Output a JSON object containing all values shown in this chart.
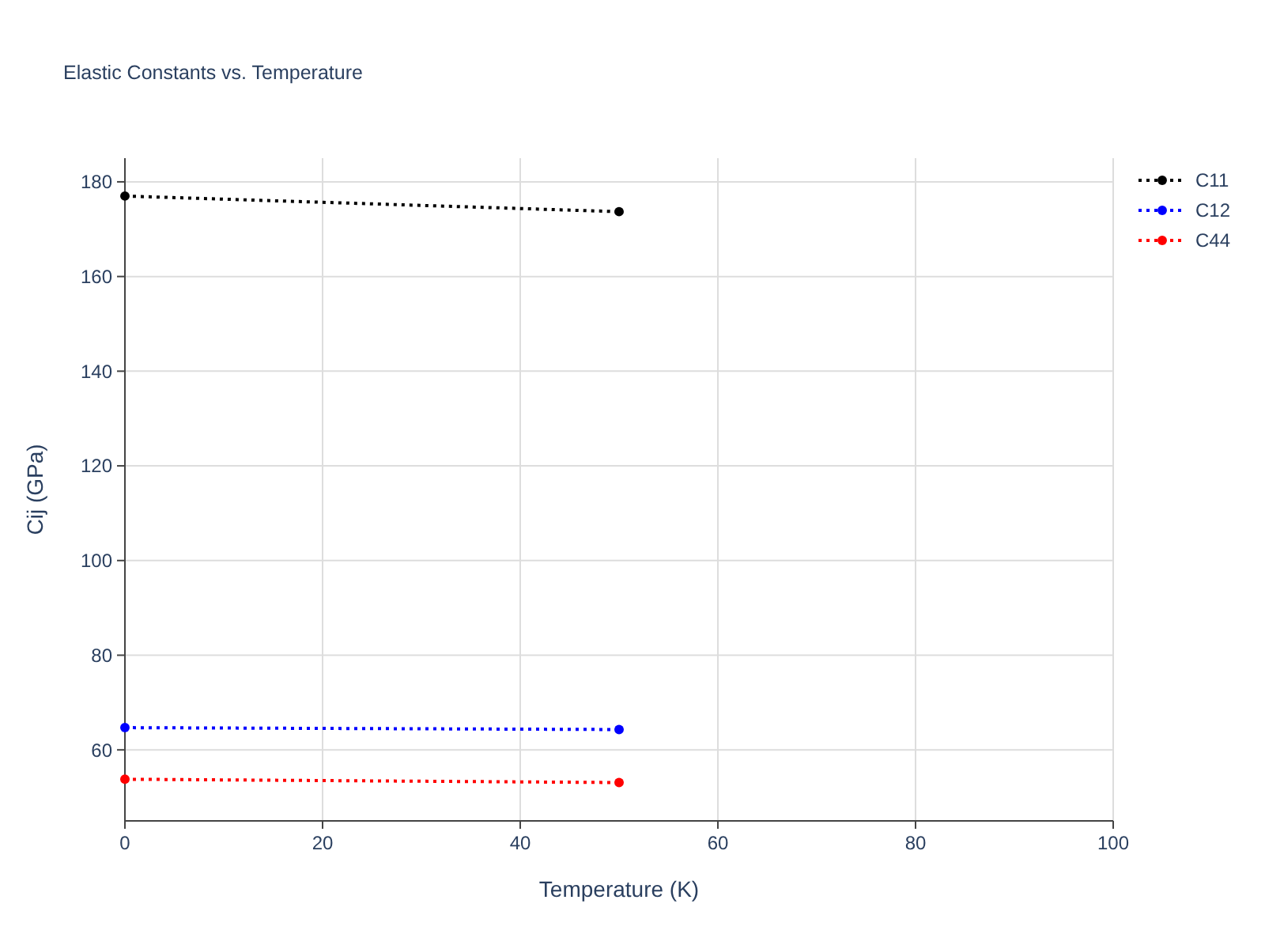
{
  "chart_data": {
    "type": "line",
    "title": "Elastic Constants vs. Temperature",
    "xlabel": "Temperature (K)",
    "ylabel": "Cij (GPa)",
    "x": [
      0,
      50
    ],
    "series": [
      {
        "name": "C11",
        "color": "#000000",
        "values": [
          177,
          173.7
        ]
      },
      {
        "name": "C12",
        "color": "#0000ff",
        "values": [
          64.7,
          64.3
        ]
      },
      {
        "name": "C44",
        "color": "#ff0000",
        "values": [
          53.8,
          53.1
        ]
      }
    ],
    "xlim": [
      0,
      100
    ],
    "xticks": [
      0,
      20,
      40,
      60,
      80,
      100
    ],
    "ylim": [
      45,
      185
    ],
    "yticks": [
      60,
      80,
      100,
      120,
      140,
      160,
      180
    ],
    "grid": true,
    "legend": "top right",
    "marker": "circle",
    "line_style": "dotted"
  }
}
